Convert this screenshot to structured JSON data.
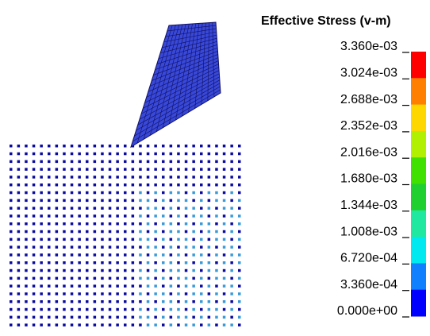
{
  "legend": {
    "title": "Effective Stress (v-m)",
    "labels": [
      "3.360e-03",
      "3.024e-03",
      "2.688e-03",
      "2.352e-03",
      "2.016e-03",
      "1.680e-03",
      "1.344e-03",
      "1.008e-03",
      "6.720e-04",
      "3.360e-04",
      "0.000e+00"
    ],
    "colors": [
      "#ff0000",
      "#ff8000",
      "#ffd700",
      "#b0f000",
      "#40e000",
      "#20d030",
      "#20e8a0",
      "#00e8f0",
      "#1080ff",
      "#0000ff"
    ]
  }
}
